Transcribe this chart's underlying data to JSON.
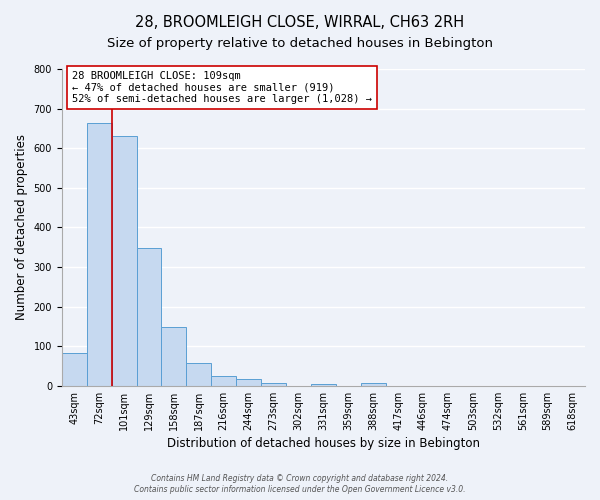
{
  "title": "28, BROOMLEIGH CLOSE, WIRRAL, CH63 2RH",
  "subtitle": "Size of property relative to detached houses in Bebington",
  "xlabel": "Distribution of detached houses by size in Bebington",
  "ylabel": "Number of detached properties",
  "bin_labels": [
    "43sqm",
    "72sqm",
    "101sqm",
    "129sqm",
    "158sqm",
    "187sqm",
    "216sqm",
    "244sqm",
    "273sqm",
    "302sqm",
    "331sqm",
    "359sqm",
    "388sqm",
    "417sqm",
    "446sqm",
    "474sqm",
    "503sqm",
    "532sqm",
    "561sqm",
    "589sqm",
    "618sqm"
  ],
  "bar_heights": [
    83,
    663,
    630,
    349,
    148,
    57,
    25,
    18,
    8,
    0,
    5,
    0,
    8,
    0,
    0,
    0,
    0,
    0,
    0,
    0,
    0
  ],
  "bar_color": "#c6d9f0",
  "bar_edge_color": "#5a9fd4",
  "red_line_x": 1.5,
  "highlight_line_color": "#cc0000",
  "annotation_text": "28 BROOMLEIGH CLOSE: 109sqm\n← 47% of detached houses are smaller (919)\n52% of semi-detached houses are larger (1,028) →",
  "annotation_box_color": "#ffffff",
  "annotation_box_edge": "#cc0000",
  "ylim": [
    0,
    800
  ],
  "yticks": [
    0,
    100,
    200,
    300,
    400,
    500,
    600,
    700,
    800
  ],
  "footer_line1": "Contains HM Land Registry data © Crown copyright and database right 2024.",
  "footer_line2": "Contains public sector information licensed under the Open Government Licence v3.0.",
  "bg_color": "#eef2f9",
  "grid_color": "#ffffff",
  "title_fontsize": 10.5,
  "subtitle_fontsize": 9.5,
  "axis_label_fontsize": 8.5,
  "tick_fontsize": 7,
  "annot_fontsize": 7.5,
  "footer_fontsize": 5.5
}
